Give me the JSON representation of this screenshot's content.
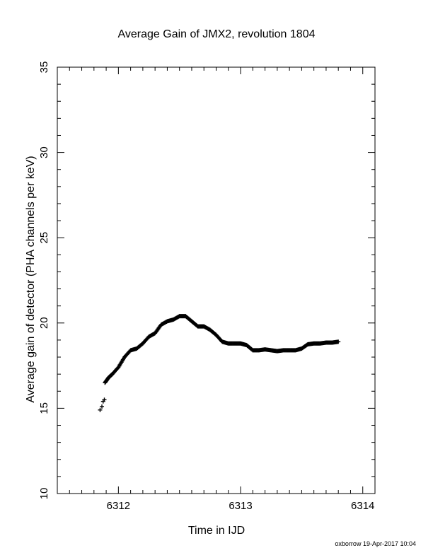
{
  "chart_data": {
    "type": "scatter",
    "title": "Average Gain of JMX2, revolution 1804",
    "xlabel": "Time in IJD",
    "ylabel": "Average gain of detector (PHA channels per keV)",
    "xlim": [
      6311.5,
      6314.1
    ],
    "ylim": [
      10,
      35
    ],
    "xticks": [
      6312,
      6313,
      6314
    ],
    "yticks": [
      10,
      15,
      20,
      25,
      30,
      35
    ],
    "grid": false,
    "marker": "plus",
    "series": [
      {
        "name": "",
        "x": [
          6311.85,
          6311.865,
          6311.875,
          6311.885,
          6311.89,
          6311.92,
          6311.95,
          6312.0,
          6312.05,
          6312.1,
          6312.15,
          6312.2,
          6312.25,
          6312.3,
          6312.35,
          6312.4,
          6312.45,
          6312.5,
          6312.55,
          6312.6,
          6312.65,
          6312.7,
          6312.75,
          6312.8,
          6312.85,
          6312.9,
          6312.95,
          6313.0,
          6313.05,
          6313.1,
          6313.15,
          6313.2,
          6313.25,
          6313.3,
          6313.35,
          6313.4,
          6313.45,
          6313.5,
          6313.55,
          6313.6,
          6313.65,
          6313.7,
          6313.75,
          6313.8
        ],
        "y": [
          14.9,
          15.1,
          15.4,
          15.5,
          16.5,
          16.8,
          17.0,
          17.4,
          18.0,
          18.4,
          18.5,
          18.8,
          19.2,
          19.4,
          19.9,
          20.1,
          20.2,
          20.4,
          20.4,
          20.1,
          19.8,
          19.8,
          19.6,
          19.3,
          18.9,
          18.8,
          18.8,
          18.8,
          18.7,
          18.4,
          18.4,
          18.45,
          18.4,
          18.35,
          18.4,
          18.4,
          18.4,
          18.5,
          18.75,
          18.8,
          18.8,
          18.85,
          18.85,
          18.9
        ]
      }
    ]
  },
  "footer": {
    "credit": "oxborrow 19-Apr-2017 10:04"
  }
}
